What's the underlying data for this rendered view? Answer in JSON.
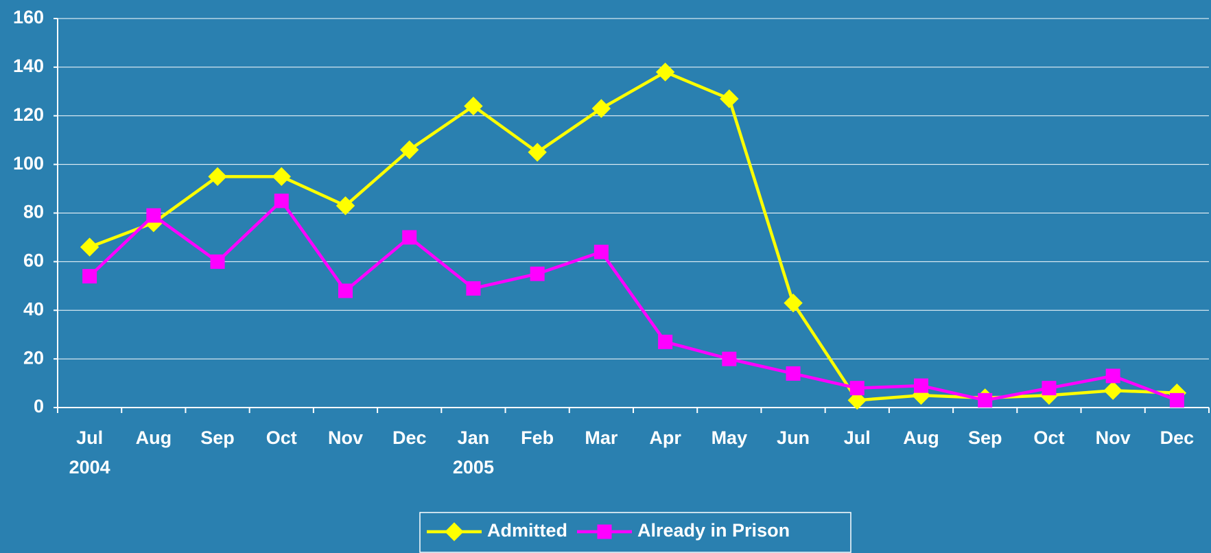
{
  "chart_data": {
    "type": "line",
    "categories": [
      "Jul",
      "Aug",
      "Sep",
      "Oct",
      "Nov",
      "Dec",
      "Jan",
      "Feb",
      "Mar",
      "Apr",
      "May",
      "Jun",
      "Jul",
      "Aug",
      "Sep",
      "Oct",
      "Nov",
      "Dec"
    ],
    "years": [
      "2004",
      null,
      null,
      null,
      null,
      null,
      "2005",
      null,
      null,
      null,
      null,
      null,
      null,
      null,
      null,
      null,
      null,
      null
    ],
    "series": [
      {
        "name": "Admitted",
        "color": "#ffff00",
        "marker": "diamond",
        "values": [
          66,
          76,
          95,
          95,
          83,
          106,
          124,
          105,
          123,
          138,
          127,
          43,
          3,
          5,
          4,
          5,
          7,
          6
        ]
      },
      {
        "name": "Already in Prison",
        "color": "#ff00ff",
        "marker": "square",
        "values": [
          54,
          79,
          60,
          85,
          48,
          70,
          49,
          55,
          64,
          27,
          20,
          14,
          8,
          9,
          3,
          8,
          13,
          3
        ]
      }
    ],
    "ylim": [
      0,
      160
    ],
    "yticks": [
      0,
      20,
      40,
      60,
      80,
      100,
      120,
      140,
      160
    ],
    "grid": true,
    "legend": "bottom"
  }
}
